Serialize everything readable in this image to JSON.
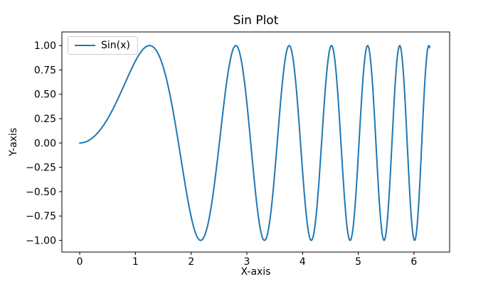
{
  "chart_data": {
    "type": "line",
    "title": "Sin Plot",
    "xlabel": "X-axis",
    "ylabel": "Y-axis",
    "background": "#ffffff",
    "axes_edge_color": "#000000",
    "grid": false,
    "xlim": [
      -0.32,
      6.64
    ],
    "ylim": [
      -1.12,
      1.14
    ],
    "x_ticks": [
      0,
      1,
      2,
      3,
      4,
      5,
      6
    ],
    "x_tick_labels": [
      "0",
      "1",
      "2",
      "3",
      "4",
      "5",
      "6"
    ],
    "y_ticks": [
      -1.0,
      -0.75,
      -0.5,
      -0.25,
      0.0,
      0.25,
      0.5,
      0.75,
      1.0
    ],
    "y_tick_labels": [
      "−1.00",
      "−0.75",
      "−0.50",
      "−0.25",
      "0.00",
      "0.25",
      "0.50",
      "0.75",
      "1.00"
    ],
    "legend": {
      "position": "upper-left",
      "entries": [
        {
          "label": "Sin(x)",
          "color": "#1f77b4"
        }
      ]
    },
    "series": [
      {
        "name": "Sin(x)",
        "color": "#1f77b4",
        "line_width": 2,
        "function": "sin(x^2)",
        "x_start": 0,
        "x_end": 6.2832,
        "samples": 1400,
        "keypoints": [
          [
            0,
            0
          ],
          [
            1.2533,
            1.0
          ],
          [
            2.1708,
            -1.0
          ],
          [
            2.8025,
            1.0
          ],
          [
            3.316,
            -1.0
          ],
          [
            3.7599,
            1.0
          ],
          [
            4.156,
            -1.0
          ],
          [
            4.5175,
            1.0
          ],
          [
            4.8525,
            -1.0
          ],
          [
            5.1662,
            1.0
          ],
          [
            5.462,
            -1.0
          ],
          [
            5.7427,
            1.0
          ],
          [
            6.0104,
            -1.0
          ],
          [
            6.2666,
            1.0
          ],
          [
            6.2832,
            0.979
          ]
        ]
      }
    ]
  }
}
